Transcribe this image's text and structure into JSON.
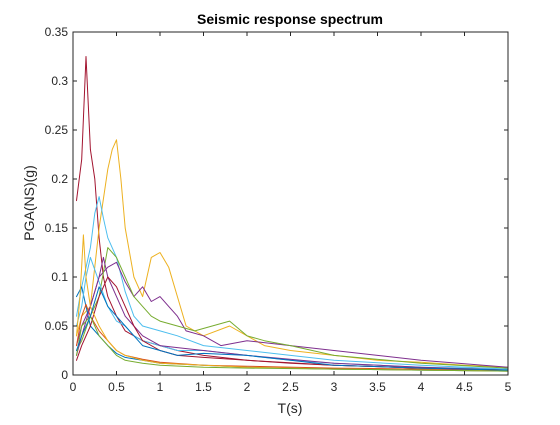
{
  "chart_data": {
    "type": "line",
    "title": "Seismic response spectrum",
    "xlabel": "T(s)",
    "ylabel": "PGA(NS)(g)",
    "xlim": [
      0,
      5
    ],
    "ylim": [
      0,
      0.35
    ],
    "xticks": [
      "0",
      "0.5",
      "1",
      "1.5",
      "2",
      "2.5",
      "3",
      "3.5",
      "4",
      "4.5",
      "5"
    ],
    "yticks": [
      "0",
      "0.05",
      "0.1",
      "0.15",
      "0.2",
      "0.25",
      "0.3",
      "0.35"
    ],
    "grid": false,
    "legend": "none",
    "series": [
      {
        "color": "#A2142F",
        "x": [
          0.04,
          0.1,
          0.15,
          0.2,
          0.25,
          0.3,
          0.35,
          0.4,
          0.5,
          0.6,
          0.7,
          0.8,
          1.0,
          1.2,
          1.5,
          2.0,
          2.5,
          3.0,
          4.0,
          5.0
        ],
        "y": [
          0.178,
          0.22,
          0.325,
          0.23,
          0.2,
          0.14,
          0.1,
          0.08,
          0.06,
          0.045,
          0.04,
          0.035,
          0.03,
          0.025,
          0.02,
          0.015,
          0.012,
          0.01,
          0.007,
          0.005
        ]
      },
      {
        "color": "#EDB120",
        "x": [
          0.04,
          0.1,
          0.2,
          0.3,
          0.4,
          0.45,
          0.5,
          0.55,
          0.6,
          0.7,
          0.8,
          0.9,
          1.0,
          1.1,
          1.2,
          1.3,
          1.5,
          1.8,
          2.0,
          2.2,
          2.5,
          3.0,
          3.5,
          4.0,
          4.5,
          5.0
        ],
        "y": [
          0.04,
          0.06,
          0.07,
          0.15,
          0.21,
          0.23,
          0.24,
          0.2,
          0.15,
          0.1,
          0.08,
          0.12,
          0.125,
          0.11,
          0.08,
          0.05,
          0.04,
          0.05,
          0.04,
          0.03,
          0.025,
          0.02,
          0.015,
          0.013,
          0.01,
          0.008
        ]
      },
      {
        "color": "#4DBEEE",
        "x": [
          0.04,
          0.1,
          0.2,
          0.25,
          0.3,
          0.35,
          0.4,
          0.5,
          0.6,
          0.7,
          0.8,
          1.0,
          1.2,
          1.5,
          2.0,
          2.5,
          3.0,
          4.0,
          5.0
        ],
        "y": [
          0.06,
          0.09,
          0.13,
          0.165,
          0.182,
          0.16,
          0.14,
          0.12,
          0.085,
          0.06,
          0.05,
          0.045,
          0.04,
          0.03,
          0.025,
          0.02,
          0.015,
          0.01,
          0.006
        ]
      },
      {
        "color": "#7E2F8E",
        "x": [
          0.04,
          0.1,
          0.2,
          0.3,
          0.4,
          0.5,
          0.6,
          0.7,
          0.8,
          0.9,
          1.0,
          1.1,
          1.2,
          1.3,
          1.5,
          1.7,
          2.0,
          2.5,
          3.0,
          3.5,
          4.0,
          5.0
        ],
        "y": [
          0.03,
          0.05,
          0.07,
          0.1,
          0.11,
          0.115,
          0.095,
          0.08,
          0.09,
          0.075,
          0.08,
          0.07,
          0.06,
          0.045,
          0.04,
          0.03,
          0.035,
          0.03,
          0.025,
          0.02,
          0.015,
          0.008
        ]
      },
      {
        "color": "#77AC30",
        "x": [
          0.04,
          0.1,
          0.2,
          0.3,
          0.4,
          0.5,
          0.6,
          0.7,
          0.8,
          0.9,
          1.0,
          1.2,
          1.4,
          1.6,
          1.8,
          2.0,
          2.2,
          2.5,
          3.0,
          4.0,
          5.0
        ],
        "y": [
          0.025,
          0.035,
          0.06,
          0.08,
          0.13,
          0.12,
          0.1,
          0.08,
          0.07,
          0.06,
          0.055,
          0.05,
          0.045,
          0.05,
          0.055,
          0.04,
          0.035,
          0.03,
          0.02,
          0.012,
          0.007
        ]
      },
      {
        "color": "#0072BD",
        "x": [
          0.04,
          0.1,
          0.15,
          0.2,
          0.3,
          0.4,
          0.5,
          0.6,
          0.8,
          1.0,
          1.5,
          2.0,
          3.0,
          4.0,
          5.0
        ],
        "y": [
          0.08,
          0.09,
          0.07,
          0.05,
          0.04,
          0.03,
          0.022,
          0.018,
          0.015,
          0.012,
          0.01,
          0.008,
          0.006,
          0.005,
          0.004
        ]
      },
      {
        "color": "#D95319",
        "x": [
          0.04,
          0.1,
          0.15,
          0.2,
          0.3,
          0.4,
          0.5,
          0.6,
          0.8,
          1.0,
          1.5,
          2.0,
          3.0,
          4.0,
          5.0
        ],
        "y": [
          0.03,
          0.06,
          0.072,
          0.06,
          0.045,
          0.035,
          0.025,
          0.02,
          0.016,
          0.013,
          0.01,
          0.009,
          0.007,
          0.006,
          0.005
        ]
      },
      {
        "color": "#4DBEEE",
        "x": [
          0.04,
          0.1,
          0.15,
          0.2,
          0.3,
          0.4,
          0.5,
          0.6,
          0.7,
          0.8,
          1.0,
          1.2,
          1.5,
          2.0,
          2.5,
          3.0,
          4.0,
          5.0
        ],
        "y": [
          0.05,
          0.07,
          0.1,
          0.12,
          0.095,
          0.07,
          0.055,
          0.05,
          0.04,
          0.035,
          0.03,
          0.025,
          0.025,
          0.02,
          0.015,
          0.012,
          0.008,
          0.006
        ]
      },
      {
        "color": "#7E2F8E",
        "x": [
          0.04,
          0.1,
          0.2,
          0.3,
          0.35,
          0.4,
          0.5,
          0.6,
          0.7,
          0.8,
          1.0,
          1.2,
          1.5,
          2.0,
          3.0,
          4.0,
          5.0
        ],
        "y": [
          0.02,
          0.04,
          0.07,
          0.1,
          0.12,
          0.1,
          0.08,
          0.06,
          0.05,
          0.04,
          0.03,
          0.028,
          0.025,
          0.02,
          0.012,
          0.008,
          0.005
        ]
      },
      {
        "color": "#A2142F",
        "x": [
          0.04,
          0.1,
          0.2,
          0.3,
          0.4,
          0.5,
          0.6,
          0.7,
          0.8,
          1.0,
          1.2,
          1.5,
          2.0,
          3.0,
          4.0,
          5.0
        ],
        "y": [
          0.015,
          0.03,
          0.05,
          0.08,
          0.1,
          0.09,
          0.07,
          0.05,
          0.035,
          0.025,
          0.02,
          0.018,
          0.015,
          0.01,
          0.007,
          0.005
        ]
      },
      {
        "color": "#EDB120",
        "x": [
          0.04,
          0.08,
          0.12,
          0.15,
          0.2,
          0.3,
          0.4,
          0.5,
          0.6,
          0.8,
          1.0,
          1.5,
          2.0,
          3.0,
          4.0,
          5.0
        ],
        "y": [
          0.04,
          0.08,
          0.143,
          0.1,
          0.07,
          0.05,
          0.035,
          0.025,
          0.02,
          0.015,
          0.012,
          0.01,
          0.008,
          0.006,
          0.005,
          0.004
        ]
      },
      {
        "color": "#77AC30",
        "x": [
          0.04,
          0.1,
          0.2,
          0.3,
          0.4,
          0.5,
          0.6,
          0.8,
          1.0,
          1.5,
          2.0,
          3.0,
          4.0,
          5.0
        ],
        "y": [
          0.02,
          0.05,
          0.06,
          0.04,
          0.03,
          0.02,
          0.015,
          0.012,
          0.01,
          0.008,
          0.007,
          0.006,
          0.005,
          0.004
        ]
      },
      {
        "color": "#0072BD",
        "x": [
          0.04,
          0.1,
          0.2,
          0.3,
          0.4,
          0.5,
          0.6,
          0.7,
          0.8,
          1.0,
          1.2,
          1.5,
          2.0,
          2.5,
          3.0,
          4.0,
          5.0
        ],
        "y": [
          0.025,
          0.04,
          0.06,
          0.09,
          0.07,
          0.06,
          0.05,
          0.04,
          0.03,
          0.025,
          0.02,
          0.022,
          0.02,
          0.015,
          0.01,
          0.007,
          0.005
        ]
      }
    ]
  }
}
